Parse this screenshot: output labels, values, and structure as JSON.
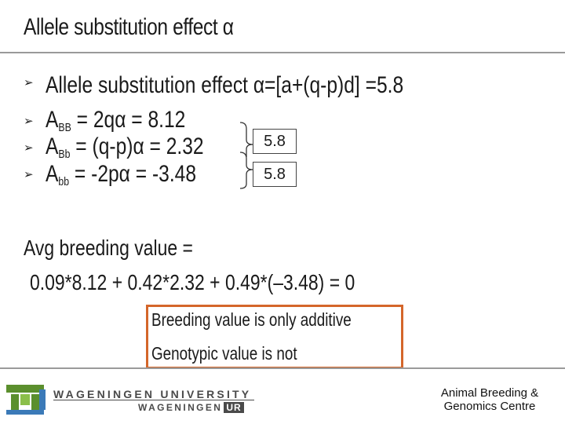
{
  "title": "Allele substitution effect α",
  "bullets": [
    {
      "text": "Allele substitution effect α=[a+(q-p)d] =5.8"
    },
    {
      "A": "A",
      "sub": "BB",
      "eq": " = 2qα   =  8.12"
    },
    {
      "A": "A",
      "sub": "Bb",
      "eq": " = (q-p)α = 2.32"
    },
    {
      "A": "A",
      "sub": "bb",
      "eq": " = -2pα  = -3.48"
    }
  ],
  "differences": [
    "5.8",
    "5.8"
  ],
  "avg_label": "Avg  breeding value =",
  "avg_formula": "0.09*8.12 + 0.42*2.32 + 0.49*(–3.48) = 0",
  "note_lines": [
    "Breeding value is only additive",
    "Genotypic value is not"
  ],
  "footer": {
    "university_line1": "WAGENINGEN UNIVERSITY",
    "university_line2_a": "WAGENINGEN",
    "university_line2_b": "UR",
    "centre_line1": "Animal Breeding &",
    "centre_line2": "Genomics Centre"
  },
  "colors": {
    "note_border": "#d4662a",
    "logo_green": "#5b8f2d",
    "logo_blue": "#3b7ab8"
  }
}
